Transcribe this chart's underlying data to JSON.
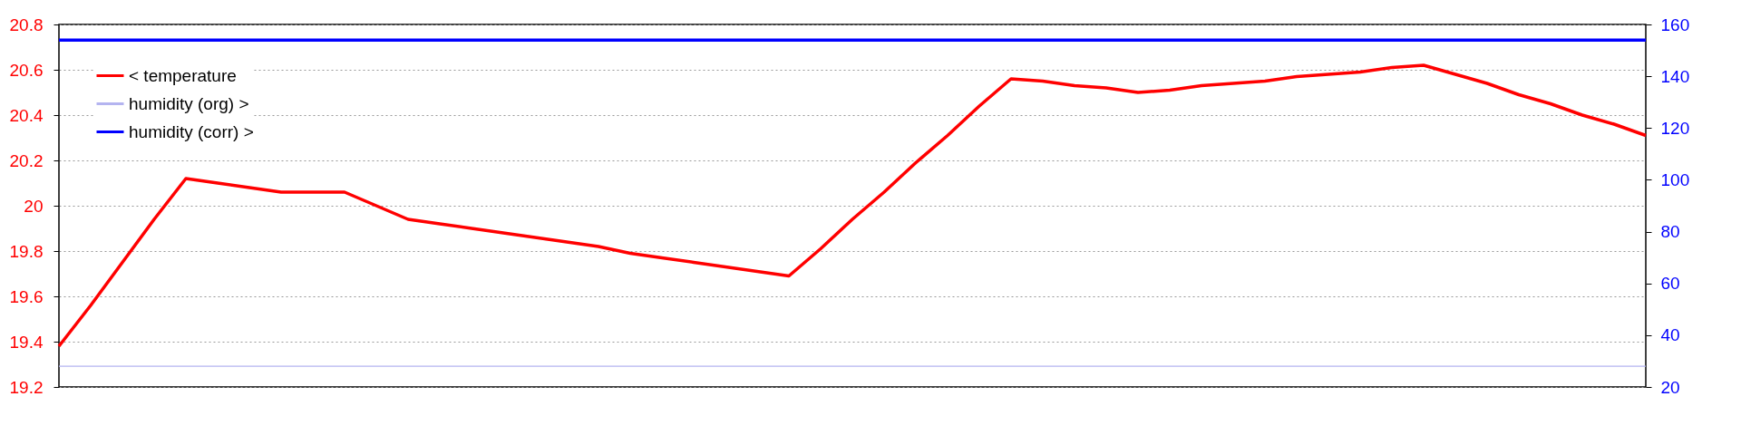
{
  "chart_data": {
    "type": "line",
    "categories": [
      null,
      null,
      null,
      null,
      null,
      null,
      null,
      null,
      null,
      null,
      null,
      null,
      null,
      null,
      null,
      null,
      null,
      null,
      null,
      null,
      null,
      null,
      null,
      null,
      null,
      null,
      null,
      null,
      null,
      null,
      null,
      null,
      null,
      null,
      null,
      null,
      null,
      null,
      null,
      null,
      null,
      null,
      null,
      null,
      null,
      null,
      null,
      null,
      null,
      null,
      null
    ],
    "ylim": [
      19.2,
      20.8
    ],
    "yticks": [
      19.2,
      19.4,
      19.6,
      19.8,
      20,
      20.2,
      20.4,
      20.6,
      20.8
    ],
    "y2lim": [
      20,
      160
    ],
    "y2ticks": [
      20,
      40,
      60,
      80,
      100,
      120,
      140,
      160
    ],
    "grid": "y",
    "legend": "top left",
    "series": [
      {
        "name": "< temperature",
        "color": "#ff0000",
        "values": [
          19.38,
          19.56,
          19.75,
          19.94,
          20.12,
          20.1,
          20.08,
          20.06,
          20.06,
          20.06,
          20.0,
          19.94,
          19.92,
          19.9,
          19.88,
          19.86,
          19.84,
          19.82,
          19.79,
          19.77,
          19.75,
          19.73,
          19.71,
          19.69,
          19.81,
          19.94,
          20.06,
          20.19,
          20.31,
          20.44,
          20.56,
          20.55,
          20.53,
          20.52,
          20.5,
          20.51,
          20.53,
          20.54,
          20.55,
          20.57,
          20.58,
          20.59,
          20.61,
          20.62,
          20.58,
          20.54,
          20.49,
          20.45,
          20.4,
          20.36,
          20.31
        ]
      },
      {
        "name": "humidity (org) >",
        "color": "#b4b4f0",
        "axis": "y2",
        "values": [
          28,
          28,
          28,
          28,
          28,
          28,
          28,
          28,
          28,
          28,
          28,
          28,
          28,
          28,
          28,
          28,
          28,
          28,
          28,
          28,
          28,
          28,
          28,
          28,
          28,
          28,
          28,
          28,
          28,
          28,
          28,
          28,
          28,
          28,
          28,
          28,
          28,
          28,
          28,
          28,
          28,
          28,
          28,
          28,
          28,
          28,
          28,
          28,
          28,
          28,
          28
        ]
      },
      {
        "name": "humidity (corr) >",
        "color": "#0000ff",
        "axis": "y2",
        "values": [
          154,
          154,
          154,
          154,
          154,
          154,
          154,
          154,
          154,
          154,
          154,
          154,
          154,
          154,
          154,
          154,
          154,
          154,
          154,
          154,
          154,
          154,
          154,
          154,
          154,
          154,
          154,
          154,
          154,
          154,
          154,
          154,
          154,
          154,
          154,
          154,
          154,
          154,
          154,
          154,
          154,
          154,
          154,
          154,
          154,
          154,
          154,
          154,
          154,
          154,
          154
        ]
      }
    ]
  }
}
